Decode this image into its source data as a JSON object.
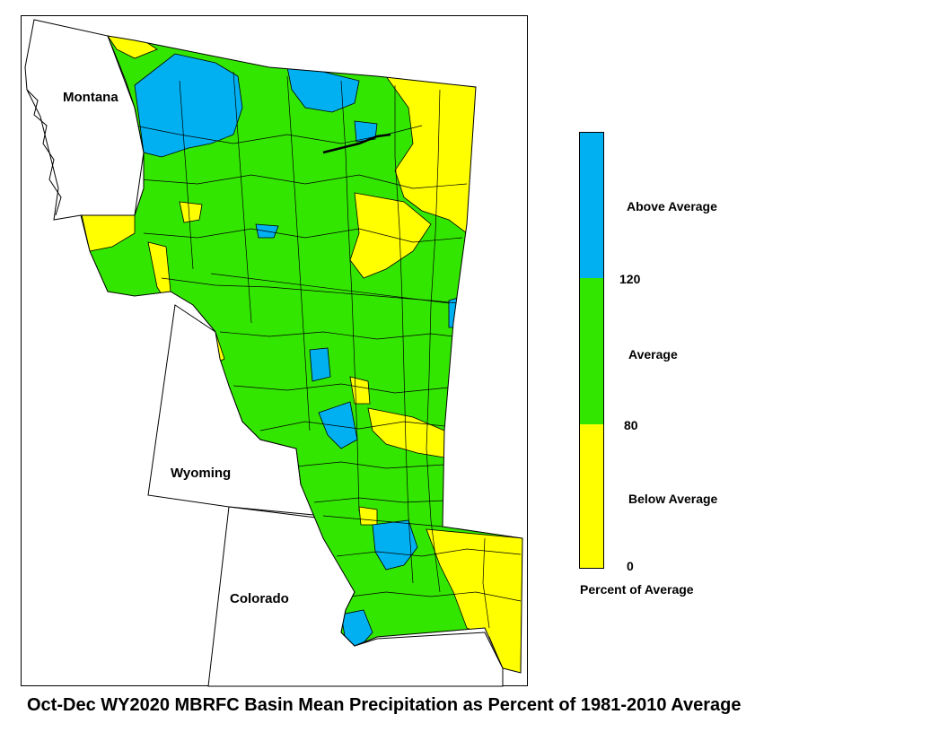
{
  "map": {
    "states": [
      "Montana",
      "Wyoming",
      "Colorado"
    ],
    "colors": {
      "above": "#00b0f0",
      "average": "#33e600",
      "below": "#ffff00",
      "lines": "#000000"
    }
  },
  "legend": {
    "title": "Percent of Average",
    "categories": [
      {
        "label": "Above Average",
        "color": "#00b0f0"
      },
      {
        "label": "Average",
        "color": "#33e600"
      },
      {
        "label": "Below Average",
        "color": "#ffff00"
      }
    ],
    "ticks": [
      "120",
      "80",
      "0"
    ]
  },
  "caption": "Oct-Dec WY2020 MBRFC Basin Mean Precipitation as Percent of 1981-2010 Average"
}
